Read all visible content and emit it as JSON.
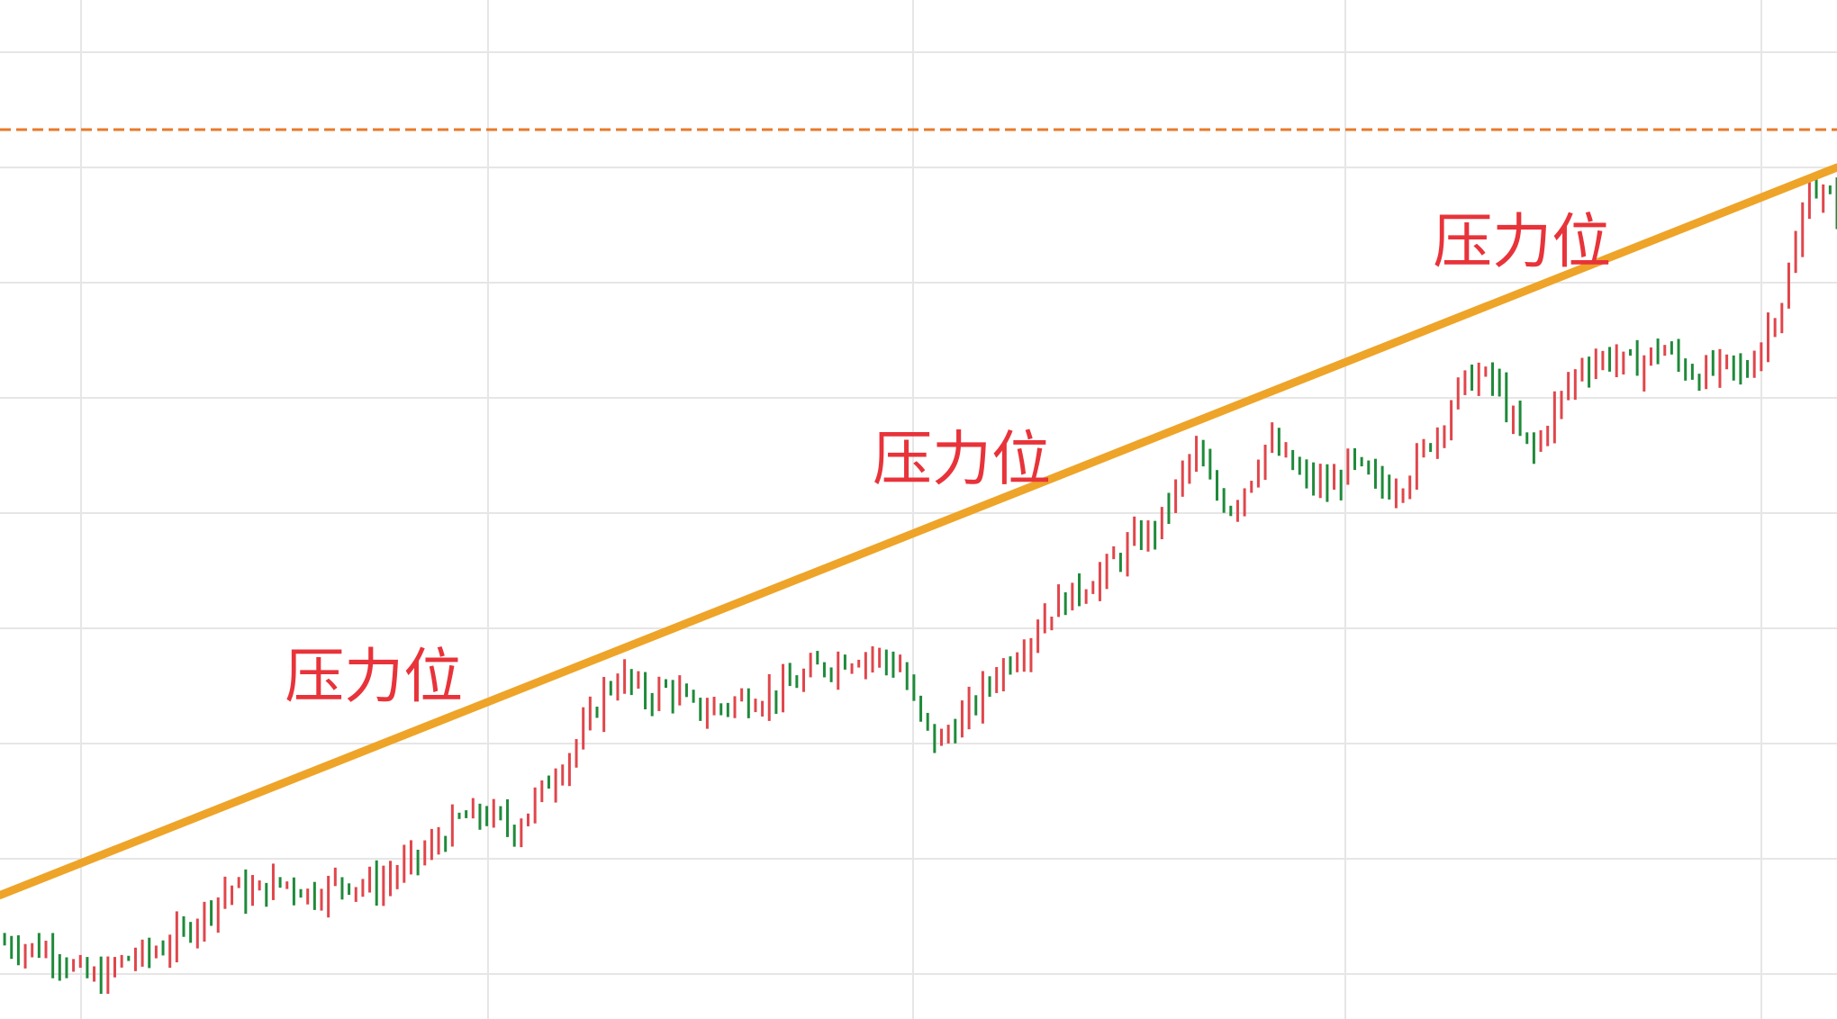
{
  "chart_data": {
    "type": "candlestick",
    "title": "",
    "xlabel": "",
    "ylabel": "",
    "grid": true,
    "ylim": [
      0,
      100
    ],
    "colors": {
      "up": "#e0464b",
      "down": "#1f8a3a",
      "trendline": "#eea428",
      "resistance_level": "#e87a2a",
      "annotation": "#e8333a",
      "grid": "#e6e6e6"
    },
    "resistance_level": 92,
    "trendline": {
      "start": [
        0,
        11
      ],
      "end": [
        200,
        88
      ]
    },
    "annotations": [
      {
        "text": "压力位",
        "x": 31,
        "y": 32
      },
      {
        "text": "压力位",
        "x": 95,
        "y": 55
      },
      {
        "text": "压力位",
        "x": 156,
        "y": 78
      }
    ],
    "series": [
      {
        "x": 0,
        "y": 6.0
      },
      {
        "x": 6,
        "y": 5.0
      },
      {
        "x": 9,
        "y": 2.5
      },
      {
        "x": 11,
        "y": 2.0
      },
      {
        "x": 13,
        "y": 4.0
      },
      {
        "x": 17,
        "y": 5.0
      },
      {
        "x": 20,
        "y": 7.0
      },
      {
        "x": 23,
        "y": 10.0
      },
      {
        "x": 25,
        "y": 12.0
      },
      {
        "x": 27,
        "y": 11.0
      },
      {
        "x": 31,
        "y": 12.5
      },
      {
        "x": 34,
        "y": 11.0
      },
      {
        "x": 37,
        "y": 12.5
      },
      {
        "x": 41,
        "y": 12.0
      },
      {
        "x": 44,
        "y": 14.0
      },
      {
        "x": 47,
        "y": 16.0
      },
      {
        "x": 50,
        "y": 19.0
      },
      {
        "x": 53,
        "y": 19.5
      },
      {
        "x": 56,
        "y": 18.0
      },
      {
        "x": 59,
        "y": 22.0
      },
      {
        "x": 62,
        "y": 26.0
      },
      {
        "x": 64,
        "y": 29.0
      },
      {
        "x": 66,
        "y": 33.0
      },
      {
        "x": 68,
        "y": 34.0
      },
      {
        "x": 70,
        "y": 32.0
      },
      {
        "x": 73,
        "y": 33.0
      },
      {
        "x": 75,
        "y": 31.0
      },
      {
        "x": 77,
        "y": 30.5
      },
      {
        "x": 80,
        "y": 31.5
      },
      {
        "x": 83,
        "y": 32.0
      },
      {
        "x": 86,
        "y": 33.0
      },
      {
        "x": 89,
        "y": 35.0
      },
      {
        "x": 92,
        "y": 36.0
      },
      {
        "x": 95,
        "y": 36.5
      },
      {
        "x": 98,
        "y": 35.0
      },
      {
        "x": 100,
        "y": 30.0
      },
      {
        "x": 102,
        "y": 27.0
      },
      {
        "x": 104,
        "y": 29.0
      },
      {
        "x": 106,
        "y": 31.0
      },
      {
        "x": 108,
        "y": 34.0
      },
      {
        "x": 110,
        "y": 36.0
      },
      {
        "x": 112,
        "y": 38.0
      },
      {
        "x": 114,
        "y": 41.0
      },
      {
        "x": 117,
        "y": 43.0
      },
      {
        "x": 120,
        "y": 45.0
      },
      {
        "x": 123,
        "y": 48.0
      },
      {
        "x": 126,
        "y": 50.0
      },
      {
        "x": 128,
        "y": 54.0
      },
      {
        "x": 130,
        "y": 58.0
      },
      {
        "x": 132,
        "y": 54.0
      },
      {
        "x": 134,
        "y": 52.0
      },
      {
        "x": 136,
        "y": 55.0
      },
      {
        "x": 138,
        "y": 59.0
      },
      {
        "x": 140,
        "y": 57.0
      },
      {
        "x": 142,
        "y": 55.0
      },
      {
        "x": 145,
        "y": 54.0
      },
      {
        "x": 147,
        "y": 57.0
      },
      {
        "x": 149,
        "y": 55.0
      },
      {
        "x": 151,
        "y": 54.0
      },
      {
        "x": 153,
        "y": 55.0
      },
      {
        "x": 155,
        "y": 58.0
      },
      {
        "x": 157,
        "y": 61.0
      },
      {
        "x": 159,
        "y": 65.0
      },
      {
        "x": 161,
        "y": 66.0
      },
      {
        "x": 163,
        "y": 65.0
      },
      {
        "x": 165,
        "y": 60.0
      },
      {
        "x": 167,
        "y": 58.0
      },
      {
        "x": 169,
        "y": 62.0
      },
      {
        "x": 172,
        "y": 67.0
      },
      {
        "x": 175,
        "y": 68.0
      },
      {
        "x": 178,
        "y": 67.0
      },
      {
        "x": 181,
        "y": 69.0
      },
      {
        "x": 183,
        "y": 67.0
      },
      {
        "x": 185,
        "y": 66.0
      },
      {
        "x": 188,
        "y": 67.0
      },
      {
        "x": 190,
        "y": 66.0
      },
      {
        "x": 192,
        "y": 70.0
      },
      {
        "x": 194,
        "y": 74.0
      },
      {
        "x": 196,
        "y": 81.0
      },
      {
        "x": 197,
        "y": 87.0
      },
      {
        "x": 198,
        "y": 85.0
      },
      {
        "x": 200,
        "y": 84.0
      }
    ]
  }
}
